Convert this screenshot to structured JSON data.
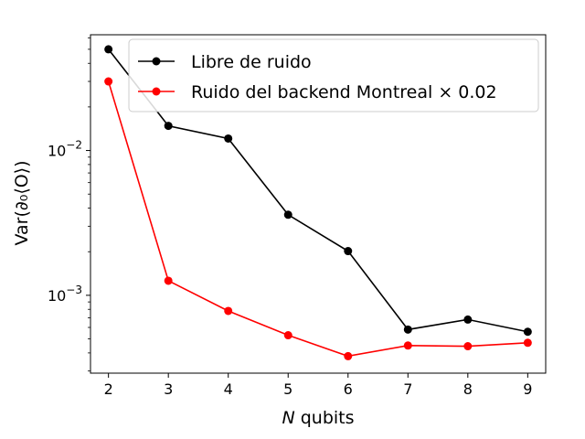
{
  "chart_data": {
    "type": "line",
    "title": "",
    "xlabel_italic": "N",
    "xlabel_rest": " qubits",
    "ylabel": "Var(∂₀⟨O⟩)",
    "x": [
      2,
      3,
      4,
      5,
      6,
      7,
      8,
      9
    ],
    "xlim": [
      1.7,
      9.3
    ],
    "ylim": [
      0.00029,
      0.063
    ],
    "yscale": "log",
    "x_ticks": [
      2,
      3,
      4,
      5,
      6,
      7,
      8,
      9
    ],
    "y_major_ticks": [
      {
        "value": 0.001,
        "base": "10",
        "exp": "−3"
      },
      {
        "value": 0.01,
        "base": "10",
        "exp": "−2"
      }
    ],
    "grid": false,
    "legend_position": "top-right",
    "series": [
      {
        "name": "Libre de ruido",
        "color": "#000000",
        "values": [
          0.05,
          0.0148,
          0.0121,
          0.0036,
          0.00202,
          0.00058,
          0.00068,
          0.00056
        ]
      },
      {
        "name": "Ruido del backend Montreal × 0.02",
        "color": "#ff0000",
        "values": [
          0.03,
          0.00126,
          0.00078,
          0.00053,
          0.00038,
          0.00045,
          0.000445,
          0.00047
        ]
      }
    ]
  }
}
